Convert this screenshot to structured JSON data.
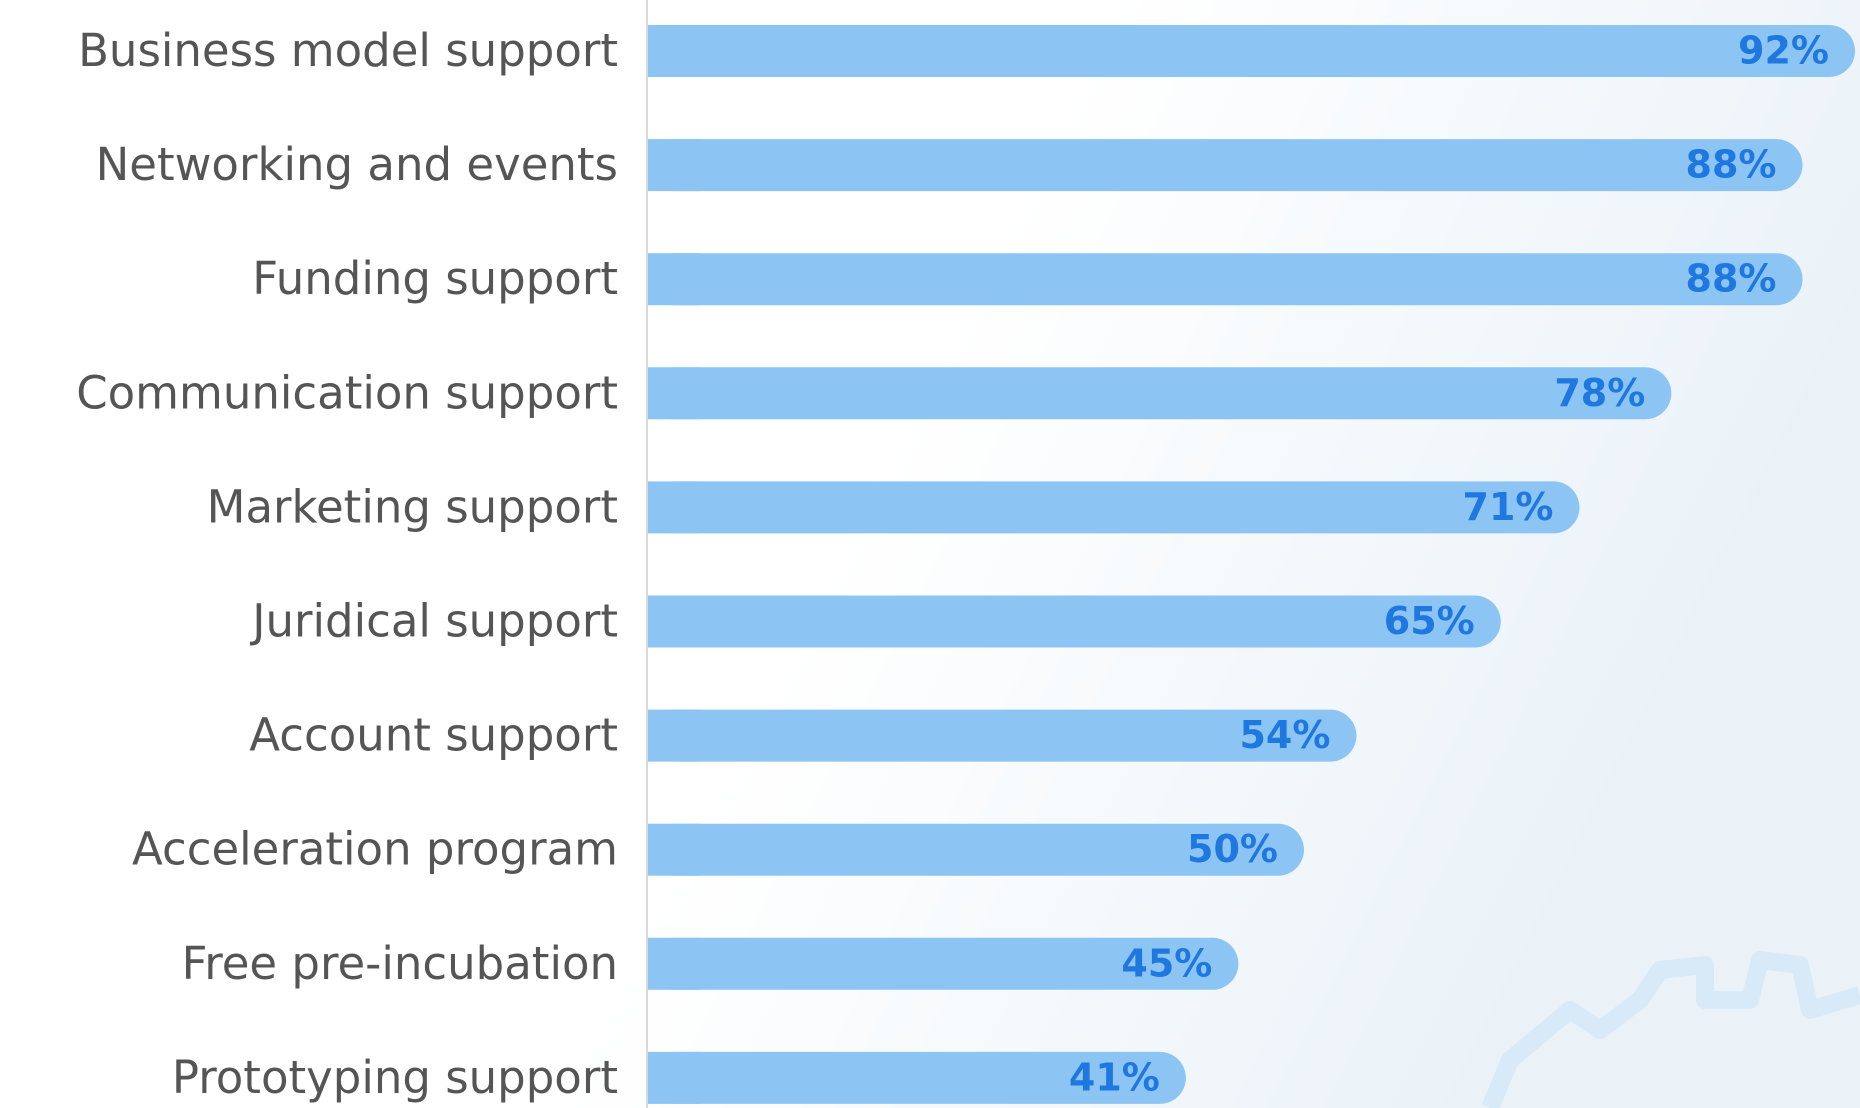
{
  "chart_data": {
    "type": "bar",
    "orientation": "horizontal",
    "categories": [
      "Business model support",
      "Networking and events",
      "Funding support",
      "Communication support",
      "Marketing support",
      "Juridical support",
      "Account support",
      "Acceleration program",
      "Free pre-incubation",
      "Prototyping support"
    ],
    "values": [
      92,
      88,
      88,
      78,
      71,
      65,
      54,
      50,
      45,
      41
    ],
    "value_labels": [
      "92%",
      "88%",
      "88%",
      "78%",
      "71%",
      "65%",
      "54%",
      "50%",
      "45%",
      "41%"
    ],
    "color": "#8cc5f3"
  }
}
